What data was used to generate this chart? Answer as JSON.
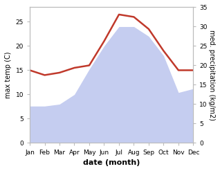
{
  "months": [
    "Jan",
    "Feb",
    "Mar",
    "Apr",
    "May",
    "Jun",
    "Jul",
    "Aug",
    "Sep",
    "Oct",
    "Nov",
    "Dec"
  ],
  "x": [
    1,
    2,
    3,
    4,
    5,
    6,
    7,
    8,
    9,
    10,
    11,
    12
  ],
  "temp": [
    15.0,
    14.0,
    14.5,
    15.5,
    16.0,
    21.0,
    26.5,
    26.0,
    23.5,
    19.0,
    15.0,
    15.0
  ],
  "precip": [
    9.5,
    9.5,
    10.0,
    12.5,
    19.0,
    25.0,
    30.0,
    30.0,
    27.5,
    22.5,
    13.0,
    14.0
  ],
  "temp_color": "#c0392b",
  "precip_fill_color": "#c5cdf0",
  "ylabel_left": "max temp (C)",
  "ylabel_right": "med. precipitation (kg/m2)",
  "xlabel": "date (month)",
  "ylim_left": [
    0,
    28
  ],
  "ylim_right": [
    0,
    35
  ],
  "yticks_left": [
    0,
    5,
    10,
    15,
    20,
    25
  ],
  "yticks_right": [
    0,
    5,
    10,
    15,
    20,
    25,
    30,
    35
  ],
  "spine_color": "#bbbbbb",
  "tick_label_size": 6.5,
  "ylabel_size": 7.0,
  "xlabel_size": 8.0
}
